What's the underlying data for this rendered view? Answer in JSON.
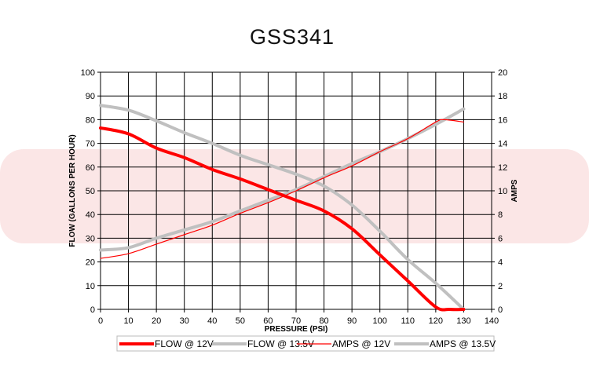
{
  "chart_data": {
    "type": "line",
    "title": "GSS341",
    "xlabel": "PRESSURE (PSI)",
    "ylabel": "FLOW (GALLONS PER HOUR)",
    "y2label": "AMPS",
    "xlim": [
      0,
      140
    ],
    "ylim": [
      0,
      100
    ],
    "y2lim": [
      0,
      20
    ],
    "xticks": [
      0,
      10,
      20,
      30,
      40,
      50,
      60,
      70,
      80,
      90,
      100,
      110,
      120,
      130,
      140
    ],
    "yticks": [
      0,
      10,
      20,
      30,
      40,
      50,
      60,
      70,
      80,
      90,
      100
    ],
    "y2ticks": [
      0,
      2,
      4,
      6,
      8,
      10,
      12,
      14,
      16,
      18,
      20
    ],
    "grid": true,
    "legend_position": "bottom",
    "series": [
      {
        "name": "FLOW @ 12V",
        "axis": "left",
        "color": "#ff0000",
        "width": "thick",
        "x": [
          0,
          10,
          20,
          30,
          40,
          50,
          60,
          70,
          80,
          90,
          100,
          110,
          120,
          125,
          130
        ],
        "y": [
          76.5,
          74,
          68,
          64,
          59,
          55,
          50.5,
          46,
          41.5,
          34,
          23,
          12,
          1,
          0,
          0
        ]
      },
      {
        "name": "FLOW @ 13.5V",
        "axis": "left",
        "color": "#c0c0c0",
        "width": "thick",
        "x": [
          0,
          10,
          20,
          30,
          40,
          50,
          60,
          70,
          80,
          90,
          100,
          110,
          120,
          130
        ],
        "y": [
          86,
          84,
          79.5,
          74.5,
          70,
          65,
          61,
          57,
          52,
          44,
          33,
          21,
          11,
          0
        ]
      },
      {
        "name": "AMPS @ 12V",
        "axis": "right",
        "color": "#ff0000",
        "width": "thin",
        "x": [
          0,
          10,
          20,
          30,
          40,
          50,
          60,
          70,
          80,
          90,
          100,
          110,
          120,
          123,
          130
        ],
        "y": [
          4.3,
          4.7,
          5.5,
          6.3,
          7.1,
          8.1,
          9.0,
          10.0,
          11.1,
          12.1,
          13.3,
          14.4,
          15.8,
          16.0,
          15.8
        ]
      },
      {
        "name": "AMPS @ 13.5V",
        "axis": "right",
        "color": "#c0c0c0",
        "width": "thick",
        "x": [
          0,
          10,
          20,
          30,
          40,
          50,
          60,
          70,
          80,
          90,
          100,
          110,
          120,
          130
        ],
        "y": [
          5.0,
          5.2,
          6.0,
          6.7,
          7.4,
          8.3,
          9.2,
          10.1,
          11.2,
          12.3,
          13.3,
          14.4,
          15.6,
          16.9
        ]
      }
    ]
  }
}
